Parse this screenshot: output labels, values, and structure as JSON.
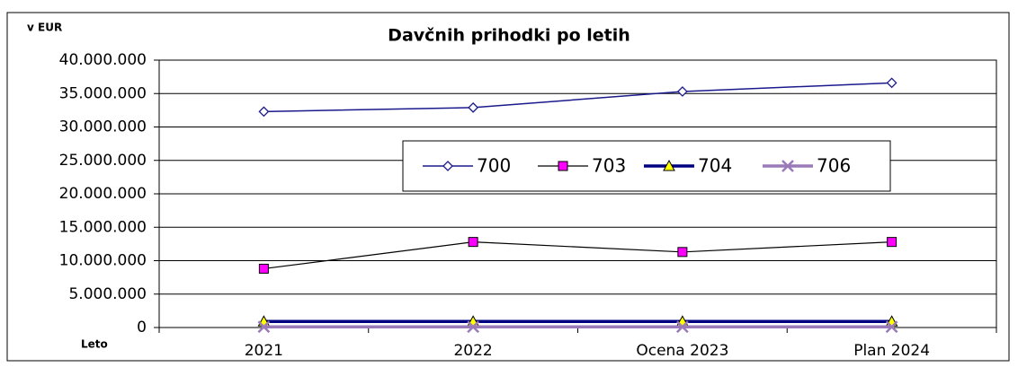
{
  "chart_data": {
    "type": "line",
    "title": "Davčnih prihodki po letih",
    "y_unit_label": "v EUR",
    "x_axis_label": "Leto",
    "categories": [
      "2021",
      "2022",
      "Ocena 2023",
      "Plan 2024"
    ],
    "series": [
      {
        "name": "700",
        "color": "#1a1a8c",
        "marker": "diamond",
        "marker_fill": "#ffffff",
        "line_width": 1.5,
        "values": [
          32300000,
          32900000,
          35300000,
          36600000
        ]
      },
      {
        "name": "703",
        "color": "#000000",
        "marker": "square",
        "marker_fill": "#ff00ff",
        "line_width": 1.2,
        "values": [
          8800000,
          12800000,
          11300000,
          12800000
        ]
      },
      {
        "name": "704",
        "color": "#000080",
        "marker": "triangle",
        "marker_fill": "#ffff00",
        "line_width": 3.5,
        "values": [
          900000,
          900000,
          900000,
          900000
        ]
      },
      {
        "name": "706",
        "color": "#9a7ab8",
        "marker": "x",
        "marker_fill": "none",
        "line_width": 3.5,
        "values": [
          100000,
          100000,
          100000,
          100000
        ]
      }
    ],
    "ylim": [
      0,
      40000000
    ],
    "yticks": [
      0,
      {
        "value": 5000000,
        "label": "5.000.000"
      },
      {
        "value": 10000000,
        "label": "10.000.000"
      },
      {
        "value": 15000000,
        "label": "15.000.000"
      },
      {
        "value": 20000000,
        "label": "20.000.000"
      },
      {
        "value": 25000000,
        "label": "25.000.000"
      },
      {
        "value": 30000000,
        "label": "30.000.000"
      },
      {
        "value": 35000000,
        "label": "35.000.000"
      },
      {
        "value": 40000000,
        "label": "40.000.000"
      }
    ],
    "grid": true
  }
}
